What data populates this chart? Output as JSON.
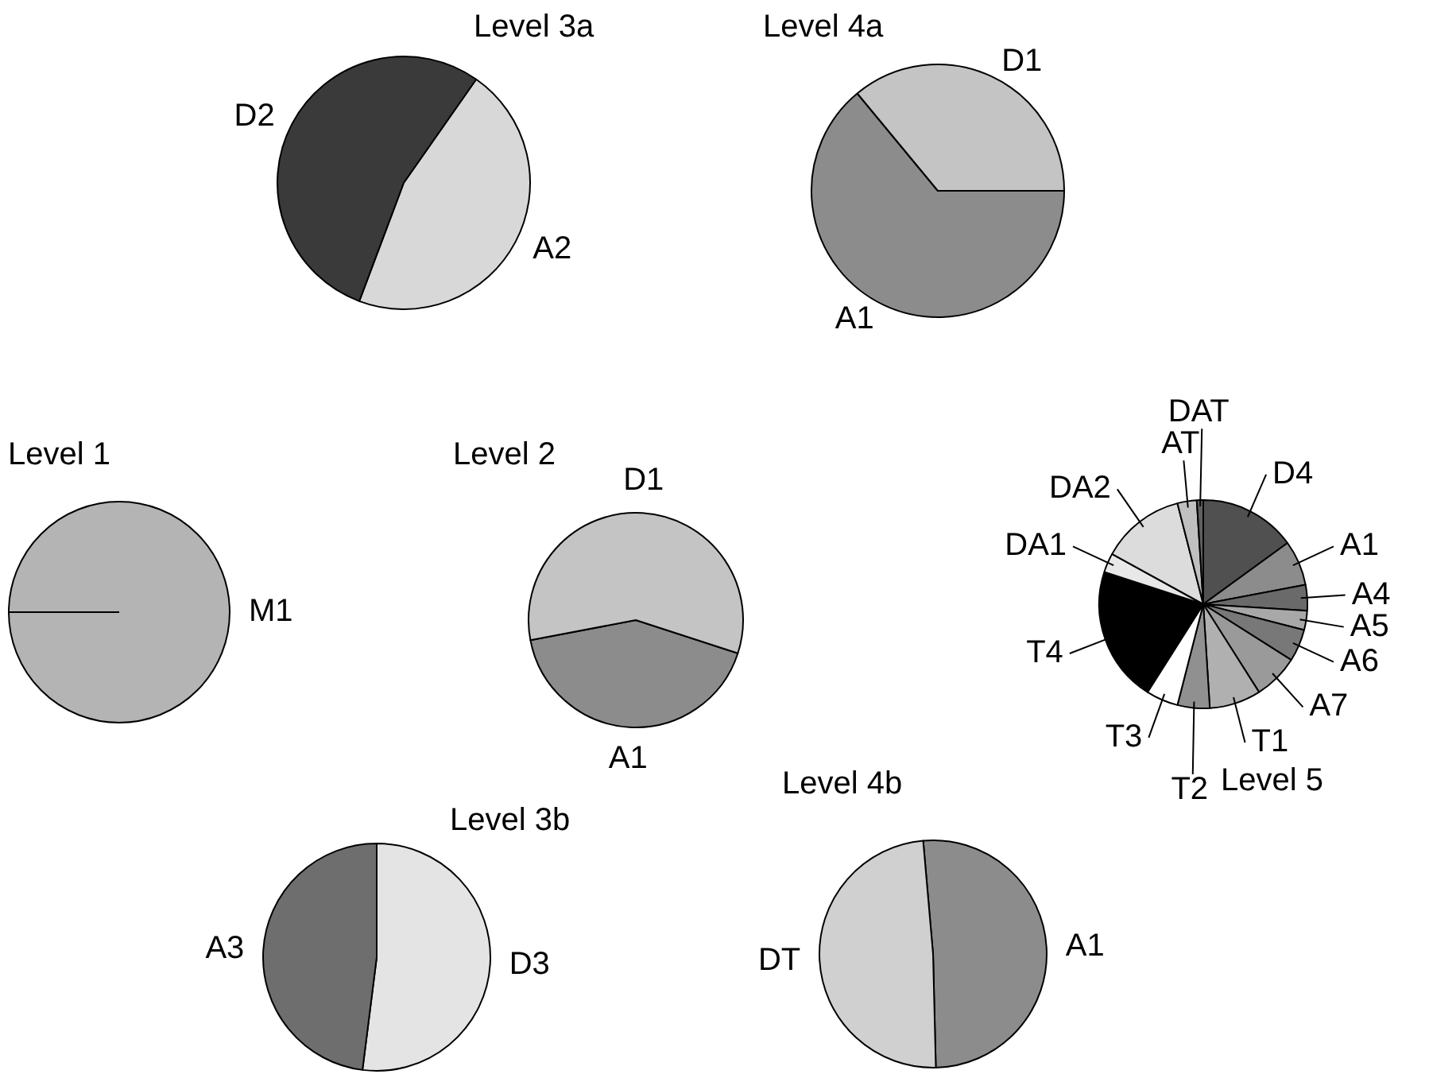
{
  "chart_data": [
    {
      "type": "pie",
      "title": "Level 3a",
      "categories": [
        "A2",
        "D2"
      ],
      "values": [
        46,
        54
      ],
      "colors": [
        "#d8d8d8",
        "#3a3a3a"
      ]
    },
    {
      "type": "pie",
      "title": "Level 4a",
      "categories": [
        "A1",
        "D1"
      ],
      "values": [
        64,
        36
      ],
      "colors": [
        "#8c8c8c",
        "#c4c4c4"
      ]
    },
    {
      "type": "pie",
      "title": "Level 1",
      "categories": [
        "M1"
      ],
      "values": [
        100
      ],
      "colors": [
        "#b4b4b4"
      ]
    },
    {
      "type": "pie",
      "title": "Level 2",
      "categories": [
        "A1",
        "D1"
      ],
      "values": [
        42,
        58
      ],
      "colors": [
        "#8c8c8c",
        "#c4c4c4"
      ]
    },
    {
      "type": "pie",
      "title": "Level 5",
      "categories": [
        "D4",
        "A1",
        "A4",
        "A5",
        "A6",
        "A7",
        "T1",
        "T2",
        "T3",
        "T4",
        "DA1",
        "DA2",
        "AT",
        "DAT"
      ],
      "values": [
        15,
        7,
        4,
        3,
        5,
        7,
        8,
        5,
        5,
        21,
        3,
        13,
        3,
        1
      ],
      "colors": [
        "#505050",
        "#8c8c8c",
        "#6a6a6a",
        "#a8a8a8",
        "#787878",
        "#9a9a9a",
        "#b0b0b0",
        "#909090",
        "#ffffff",
        "#000000",
        "#e8e8e8",
        "#dcdcdc",
        "#c0c0c0",
        "#606060"
      ]
    },
    {
      "type": "pie",
      "title": "Level 3b",
      "categories": [
        "D3",
        "A3"
      ],
      "values": [
        52,
        48
      ],
      "colors": [
        "#e4e4e4",
        "#6e6e6e"
      ]
    },
    {
      "type": "pie",
      "title": "Level 4b",
      "categories": [
        "A1",
        "DT"
      ],
      "values": [
        51,
        49
      ],
      "colors": [
        "#8c8c8c",
        "#d0d0d0"
      ]
    }
  ]
}
